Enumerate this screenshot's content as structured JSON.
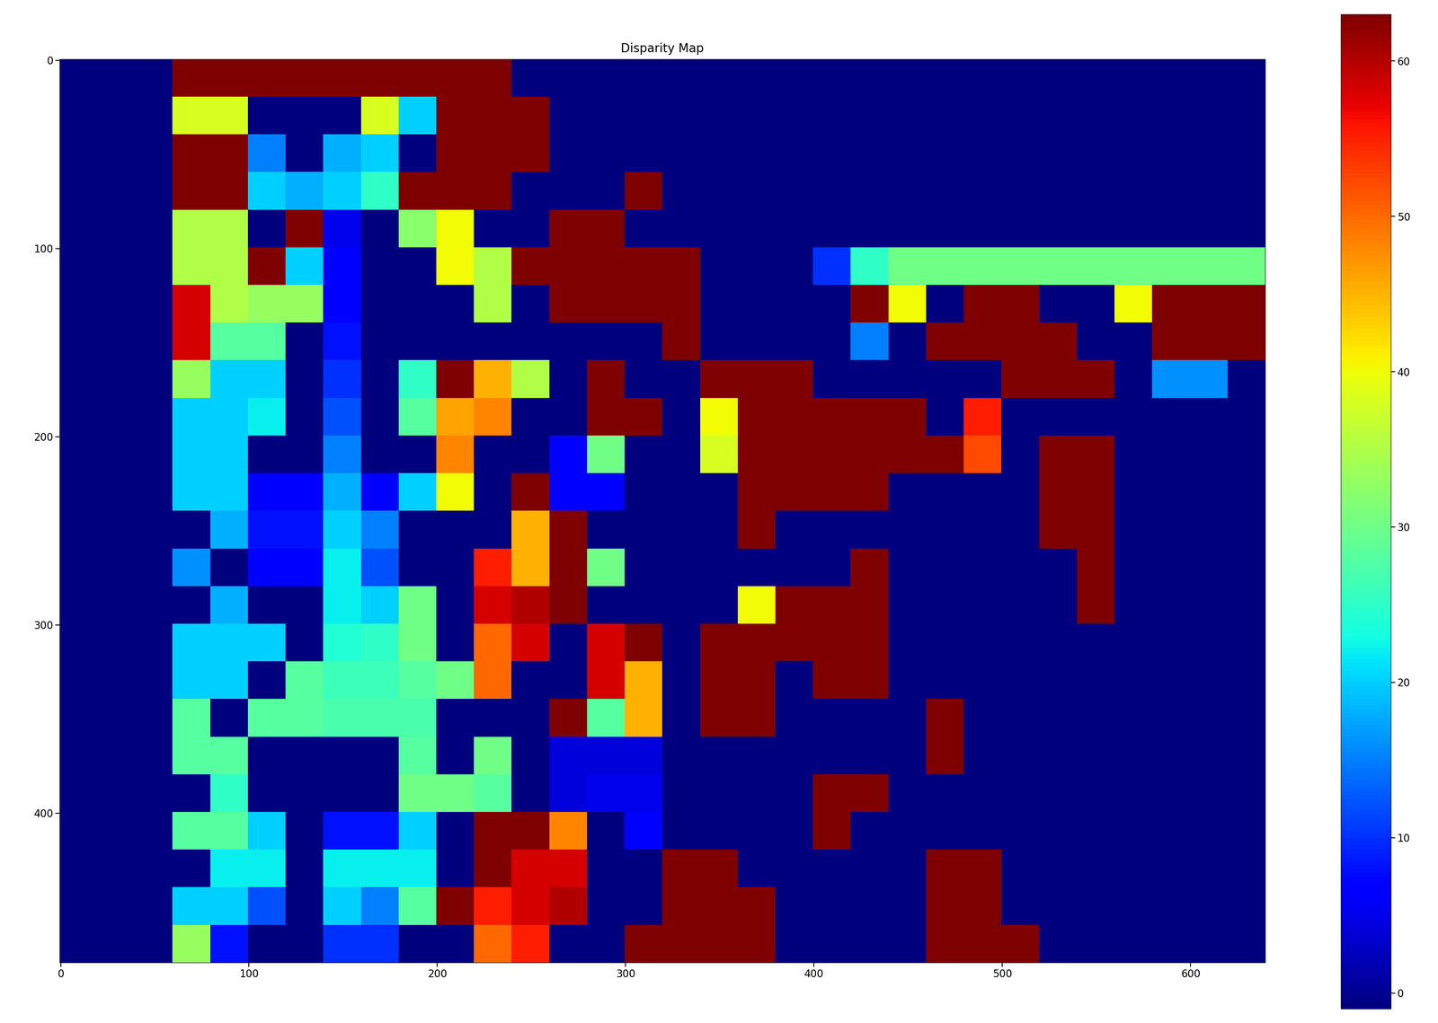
{
  "chart_data": {
    "type": "heatmap",
    "title": "Disparity Map",
    "xlim": [
      -0.5,
      639.5
    ],
    "ylim": [
      479.5,
      -0.5
    ],
    "xticks": [
      0,
      100,
      200,
      300,
      400,
      500,
      600
    ],
    "yticks": [
      0,
      100,
      200,
      300,
      400
    ],
    "colorbar_range": [
      -1,
      63
    ],
    "colorbar_ticks": [
      0,
      10,
      20,
      30,
      40,
      50,
      60
    ],
    "cells": [
      [
        -1,
        -1,
        -1,
        63,
        63,
        63,
        63,
        63,
        63,
        63,
        63,
        63,
        -1,
        -1,
        -1,
        -1,
        -1,
        -1,
        -1,
        -1,
        -1,
        -1,
        -1,
        -1,
        -1,
        -1,
        -1,
        -1,
        -1,
        -1,
        -1,
        -1
      ],
      [
        -1,
        -1,
        -1,
        38,
        38,
        -1,
        -1,
        -1,
        38,
        20,
        63,
        63,
        63,
        -1,
        -1,
        -1,
        -1,
        -1,
        -1,
        -1,
        -1,
        -1,
        -1,
        -1,
        -1,
        -1,
        -1,
        -1,
        -1,
        -1,
        -1,
        -1
      ],
      [
        -1,
        -1,
        -1,
        63,
        63,
        15,
        -1,
        18,
        20,
        -1,
        63,
        63,
        63,
        -1,
        -1,
        -1,
        -1,
        -1,
        -1,
        -1,
        -1,
        -1,
        -1,
        -1,
        -1,
        -1,
        -1,
        -1,
        -1,
        -1,
        -1,
        -1
      ],
      [
        -1,
        -1,
        -1,
        63,
        63,
        20,
        18,
        20,
        25,
        63,
        63,
        63,
        -1,
        -1,
        -1,
        63,
        -1,
        -1,
        -1,
        -1,
        -1,
        -1,
        -1,
        -1,
        -1,
        -1,
        -1,
        -1,
        -1,
        -1,
        -1,
        -1
      ],
      [
        -1,
        -1,
        -1,
        35,
        35,
        -1,
        63,
        5,
        -1,
        32,
        40,
        -1,
        -1,
        63,
        63,
        -1,
        -1,
        -1,
        -1,
        -1,
        -1,
        -1,
        -1,
        -1,
        -1,
        -1,
        -1,
        -1,
        -1,
        -1,
        -1,
        -1
      ],
      [
        -1,
        -1,
        -1,
        35,
        35,
        63,
        20,
        6,
        -1,
        -1,
        40,
        35,
        63,
        63,
        63,
        63,
        63,
        -1,
        -1,
        -1,
        10,
        25,
        30,
        30,
        30,
        30,
        30,
        30,
        30,
        30,
        30,
        30
      ],
      [
        -1,
        -1,
        -1,
        58,
        35,
        33,
        33,
        6,
        -1,
        -1,
        -1,
        35,
        -1,
        63,
        63,
        63,
        63,
        -1,
        -1,
        -1,
        -1,
        63,
        40,
        -1,
        63,
        63,
        -1,
        -1,
        40,
        63,
        63,
        63
      ],
      [
        -1,
        -1,
        -1,
        58,
        28,
        28,
        -1,
        8,
        -1,
        -1,
        -1,
        -1,
        -1,
        -1,
        -1,
        -1,
        63,
        -1,
        -1,
        -1,
        -1,
        15,
        -1,
        63,
        63,
        63,
        63,
        -1,
        -1,
        63,
        63,
        63
      ],
      [
        -1,
        -1,
        -1,
        33,
        20,
        20,
        -1,
        10,
        -1,
        25,
        63,
        45,
        35,
        -1,
        63,
        -1,
        -1,
        63,
        63,
        63,
        -1,
        -1,
        -1,
        -1,
        -1,
        63,
        63,
        63,
        -1,
        16,
        16,
        -1
      ],
      [
        -1,
        -1,
        -1,
        20,
        20,
        22,
        -1,
        12,
        -1,
        28,
        46,
        48,
        -1,
        -1,
        63,
        63,
        -1,
        40,
        63,
        63,
        63,
        63,
        63,
        -1,
        55,
        -1,
        -1,
        -1,
        -1,
        -1,
        -1,
        -1
      ],
      [
        -1,
        -1,
        -1,
        20,
        20,
        -1,
        -1,
        15,
        -1,
        -1,
        48,
        -1,
        -1,
        6,
        30,
        -1,
        -1,
        38,
        63,
        63,
        63,
        63,
        63,
        63,
        52,
        -1,
        63,
        63,
        -1,
        -1,
        -1,
        -1
      ],
      [
        -1,
        -1,
        -1,
        20,
        20,
        6,
        6,
        18,
        6,
        20,
        40,
        -1,
        63,
        6,
        6,
        -1,
        -1,
        -1,
        63,
        63,
        63,
        63,
        -1,
        -1,
        -1,
        -1,
        63,
        63,
        -1,
        -1,
        -1,
        -1
      ],
      [
        -1,
        -1,
        -1,
        -1,
        18,
        8,
        8,
        20,
        15,
        -1,
        -1,
        -1,
        45,
        63,
        -1,
        -1,
        -1,
        -1,
        63,
        -1,
        -1,
        -1,
        -1,
        -1,
        -1,
        -1,
        63,
        63,
        -1,
        -1,
        -1,
        -1
      ],
      [
        -1,
        -1,
        -1,
        16,
        -1,
        6,
        6,
        22,
        12,
        -1,
        -1,
        55,
        45,
        63,
        30,
        -1,
        -1,
        -1,
        -1,
        -1,
        -1,
        63,
        -1,
        -1,
        -1,
        -1,
        -1,
        63,
        -1,
        -1,
        -1,
        -1
      ],
      [
        -1,
        -1,
        -1,
        -1,
        18,
        -1,
        -1,
        22,
        20,
        30,
        -1,
        58,
        60,
        63,
        -1,
        -1,
        -1,
        -1,
        40,
        63,
        63,
        63,
        -1,
        -1,
        -1,
        -1,
        -1,
        63,
        -1,
        -1,
        -1,
        -1
      ],
      [
        -1,
        -1,
        -1,
        20,
        20,
        20,
        -1,
        24,
        25,
        30,
        -1,
        50,
        58,
        -1,
        58,
        63,
        -1,
        63,
        63,
        63,
        63,
        63,
        -1,
        -1,
        -1,
        -1,
        -1,
        -1,
        -1,
        -1,
        -1,
        -1
      ],
      [
        -1,
        -1,
        -1,
        20,
        20,
        -1,
        28,
        26,
        26,
        28,
        30,
        50,
        -1,
        -1,
        58,
        45,
        -1,
        63,
        63,
        -1,
        63,
        63,
        -1,
        -1,
        -1,
        -1,
        -1,
        -1,
        -1,
        -1,
        -1,
        -1
      ],
      [
        -1,
        -1,
        -1,
        28,
        -1,
        28,
        28,
        27,
        27,
        27,
        -1,
        -1,
        -1,
        63,
        28,
        45,
        -1,
        63,
        63,
        -1,
        -1,
        -1,
        -1,
        63,
        -1,
        -1,
        -1,
        -1,
        -1,
        -1,
        -1,
        -1
      ],
      [
        -1,
        -1,
        -1,
        28,
        28,
        -1,
        -1,
        -1,
        -1,
        28,
        -1,
        30,
        -1,
        4,
        4,
        4,
        -1,
        -1,
        -1,
        -1,
        -1,
        -1,
        -1,
        63,
        -1,
        -1,
        -1,
        -1,
        -1,
        -1,
        -1,
        -1
      ],
      [
        -1,
        -1,
        -1,
        -1,
        25,
        -1,
        -1,
        -1,
        -1,
        30,
        30,
        28,
        -1,
        4,
        5,
        5,
        -1,
        -1,
        -1,
        -1,
        63,
        63,
        -1,
        -1,
        -1,
        -1,
        -1,
        -1,
        -1,
        -1,
        -1,
        -1
      ],
      [
        -1,
        -1,
        -1,
        28,
        28,
        20,
        -1,
        8,
        8,
        20,
        -1,
        63,
        63,
        48,
        -1,
        6,
        -1,
        -1,
        -1,
        -1,
        63,
        -1,
        -1,
        -1,
        -1,
        -1,
        -1,
        -1,
        -1,
        -1,
        -1,
        -1
      ],
      [
        -1,
        -1,
        -1,
        -1,
        22,
        22,
        -1,
        22,
        22,
        22,
        -1,
        63,
        58,
        58,
        -1,
        -1,
        63,
        63,
        -1,
        -1,
        -1,
        -1,
        -1,
        63,
        63,
        -1,
        -1,
        -1,
        -1,
        -1,
        -1,
        -1
      ],
      [
        -1,
        -1,
        -1,
        20,
        20,
        12,
        -1,
        20,
        15,
        28,
        63,
        55,
        58,
        60,
        -1,
        -1,
        63,
        63,
        63,
        -1,
        -1,
        -1,
        -1,
        63,
        63,
        -1,
        -1,
        -1,
        -1,
        -1,
        -1,
        -1
      ],
      [
        -1,
        -1,
        -1,
        33,
        8,
        -1,
        -1,
        10,
        10,
        -1,
        -1,
        50,
        55,
        -1,
        -1,
        63,
        63,
        63,
        63,
        -1,
        -1,
        -1,
        -1,
        63,
        63,
        63,
        -1,
        -1,
        -1,
        -1,
        -1,
        -1
      ]
    ]
  }
}
